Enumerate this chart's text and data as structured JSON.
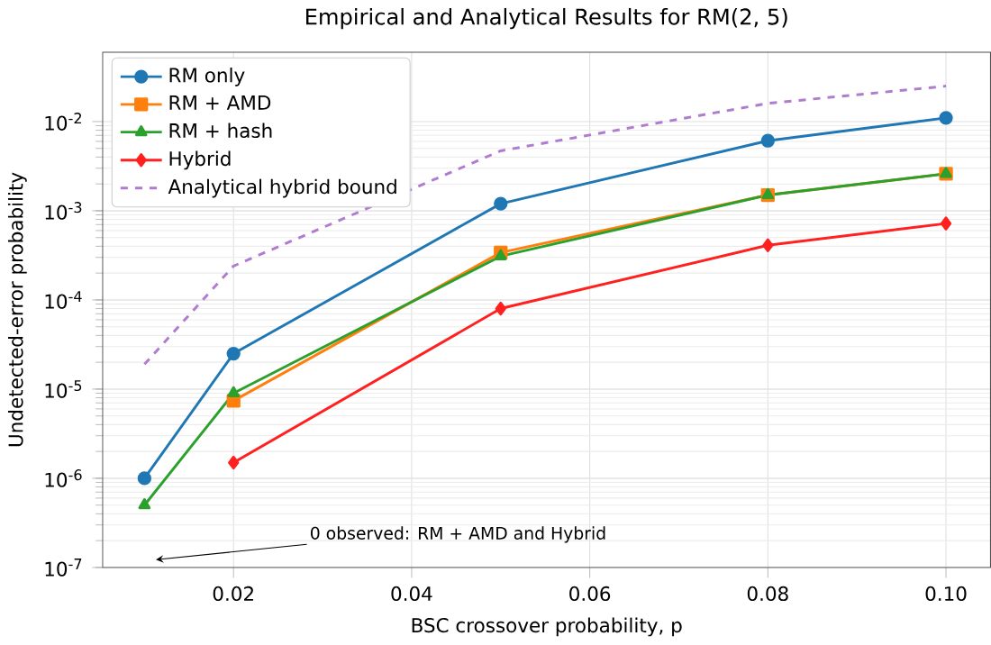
{
  "chart_data": {
    "type": "line",
    "title": "Empirical and Analytical Results for RM(2, 5)",
    "xlabel": "BSC crossover probability, p",
    "ylabel": "Undetected-error probability",
    "log": "y",
    "grid": true,
    "legend": "top left",
    "xlim": [
      0.0053,
      0.105
    ],
    "ylim": [
      1e-07,
      0.06
    ],
    "xticks": [
      0.02,
      0.04,
      0.06,
      0.08,
      {
        "value": 0.1,
        "label": "0.10"
      }
    ],
    "yticks": [
      {
        "value": 1e-07,
        "label": "10$^{-7}$"
      },
      {
        "value": 1e-06,
        "label": "10$^{-6}$"
      },
      {
        "value": 1e-05,
        "label": "10$^{-5}$"
      },
      {
        "value": 0.0001,
        "label": "10$^{-4}$"
      },
      {
        "value": 0.001,
        "label": "10$^{-3}$"
      },
      {
        "value": 0.01,
        "label": "10$^{-2}$"
      }
    ],
    "series": [
      {
        "name": "RM only",
        "color": "#1f77b4",
        "marker": "circle",
        "x": [
          0.01,
          0.02,
          0.05,
          0.08,
          0.1
        ],
        "values": [
          1e-06,
          2.5e-05,
          0.0012,
          0.0061,
          0.011
        ]
      },
      {
        "name": "RM + AMD",
        "color": "#ff7f0e",
        "marker": "square",
        "x": [
          0.02,
          0.05,
          0.08,
          0.1
        ],
        "values": [
          7.4e-06,
          0.00034,
          0.0015,
          0.0026
        ]
      },
      {
        "name": "RM + hash",
        "color": "#2ca02c",
        "marker": "triangle",
        "x": [
          0.01,
          0.02,
          0.05,
          0.08,
          0.1
        ],
        "values": [
          5e-07,
          9e-06,
          0.00031,
          0.0015,
          0.0026
        ]
      },
      {
        "name": "Hybrid",
        "color": "#ff2020",
        "marker": "diamond",
        "x": [
          0.02,
          0.05,
          0.08,
          0.1
        ],
        "values": [
          1.5e-06,
          8e-05,
          0.00041,
          0.00072
        ]
      },
      {
        "name": "Analytical hybrid bound",
        "color": "#b07cd0",
        "marker": "none",
        "line_style": "dashed",
        "x": [
          0.01,
          0.02,
          0.05,
          0.08,
          0.1
        ],
        "values": [
          1.9e-05,
          0.00024,
          0.0047,
          0.016,
          0.025
        ]
      }
    ],
    "annotations": [
      "0 observed: RM + AMD and Hybrid"
    ]
  }
}
